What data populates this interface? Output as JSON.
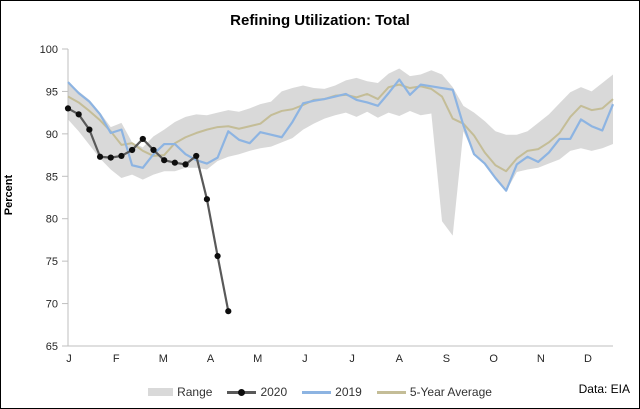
{
  "title": "Refining Utilization: Total",
  "y_axis": {
    "label": "Percent",
    "ticks": [
      100,
      95,
      90,
      85,
      80,
      75,
      70,
      65
    ],
    "min": 65,
    "max": 100
  },
  "x_axis": {
    "months": [
      "J",
      "F",
      "M",
      "A",
      "M",
      "J",
      "J",
      "A",
      "S",
      "O",
      "N",
      "D"
    ]
  },
  "legend": {
    "items": [
      "Range",
      "2020",
      "2019",
      "5-Year Average"
    ]
  },
  "source": "Data: EIA",
  "colors": {
    "band": "#d9d9d9",
    "y2020_line": "#595959",
    "y2020_marker": "#0d0d0d",
    "y2019": "#8db4e2",
    "avg5": "#c4bd97",
    "axis": "#bfbfbf",
    "tick_text": "#262626"
  },
  "chart_data": {
    "type": "line",
    "title": "Refining Utilization: Total",
    "xlabel": "",
    "ylabel": "Percent",
    "ylim": [
      65,
      100
    ],
    "yticks": [
      100,
      95,
      90,
      85,
      80,
      75,
      70,
      65
    ],
    "x_unit": "weekly, 52 weeks Jan-Dec",
    "x_month_labels": [
      "J",
      "F",
      "M",
      "A",
      "M",
      "J",
      "J",
      "A",
      "S",
      "O",
      "N",
      "D"
    ],
    "grid": false,
    "legend_position": "bottom",
    "source": "Data: EIA",
    "band": {
      "name": "Range",
      "color": "#d9d9d9",
      "max": [
        96.1,
        95.0,
        94.0,
        92.5,
        90.8,
        91.3,
        89.0,
        88.4,
        89.7,
        90.5,
        91.4,
        92.0,
        92.3,
        92.2,
        92.5,
        92.8,
        92.6,
        93.0,
        93.5,
        93.8,
        95.0,
        95.4,
        95.7,
        95.4,
        95.3,
        95.7,
        96.3,
        96.6,
        96.2,
        96.0,
        97.1,
        97.7,
        96.8,
        97.0,
        97.5,
        97.0,
        95.5,
        93.3,
        92.5,
        91.5,
        90.3,
        89.9,
        89.9,
        90.3,
        91.3,
        92.3,
        93.6,
        94.9,
        95.5,
        95.0,
        96.0,
        97.0
      ],
      "min": [
        91.7,
        90.3,
        88.7,
        87.1,
        85.8,
        84.8,
        85.2,
        84.6,
        85.2,
        85.6,
        85.6,
        86.0,
        86.0,
        85.8,
        86.8,
        87.3,
        87.6,
        88.0,
        88.3,
        88.5,
        89.0,
        89.5,
        90.5,
        91.2,
        91.8,
        92.2,
        92.5,
        92.0,
        92.6,
        91.9,
        92.5,
        92.1,
        92.7,
        92.2,
        92.4,
        79.7,
        78.0,
        90.3,
        87.6,
        86.4,
        84.8,
        83.2,
        85.5,
        85.8,
        86.0,
        86.5,
        87.0,
        88.0,
        88.3,
        88.0,
        88.3,
        88.8
      ]
    },
    "series": [
      {
        "name": "2020",
        "color": "#595959",
        "marker": "circle",
        "marker_color": "#0d0d0d",
        "values": [
          93.0,
          92.3,
          90.5,
          87.3,
          87.2,
          87.4,
          88.1,
          89.4,
          88.1,
          86.9,
          86.6,
          86.4,
          87.4,
          82.3,
          75.6,
          69.1
        ]
      },
      {
        "name": "2019",
        "color": "#8db4e2",
        "marker": "none",
        "values": [
          96.1,
          94.8,
          93.8,
          92.3,
          90.1,
          90.5,
          86.3,
          86.0,
          87.6,
          88.8,
          88.8,
          87.6,
          86.9,
          86.5,
          87.2,
          90.3,
          89.3,
          88.9,
          90.2,
          89.9,
          89.6,
          91.4,
          93.6,
          93.9,
          94.1,
          94.4,
          94.7,
          94.0,
          93.7,
          93.3,
          94.8,
          96.4,
          94.6,
          95.8,
          95.6,
          95.4,
          95.2,
          91.0,
          87.6,
          86.5,
          84.8,
          83.3,
          86.4,
          87.3,
          86.7,
          87.8,
          89.4,
          89.4,
          91.7,
          90.9,
          90.4,
          93.5
        ]
      },
      {
        "name": "5-Year Average",
        "color": "#c4bd97",
        "marker": "none",
        "values": [
          94.4,
          93.7,
          92.7,
          91.6,
          90.3,
          88.7,
          88.9,
          88.0,
          87.4,
          87.5,
          88.9,
          89.6,
          90.1,
          90.5,
          90.8,
          90.9,
          90.6,
          90.9,
          91.2,
          92.2,
          92.7,
          92.9,
          93.4,
          94.0,
          94.1,
          94.5,
          94.6,
          94.3,
          94.7,
          94.1,
          95.5,
          95.8,
          95.4,
          95.6,
          95.3,
          94.4,
          91.8,
          91.2,
          89.8,
          87.8,
          86.3,
          85.6,
          87.1,
          88.0,
          88.2,
          89.0,
          90.1,
          92.0,
          93.3,
          92.8,
          93.0,
          94.1
        ]
      }
    ]
  }
}
